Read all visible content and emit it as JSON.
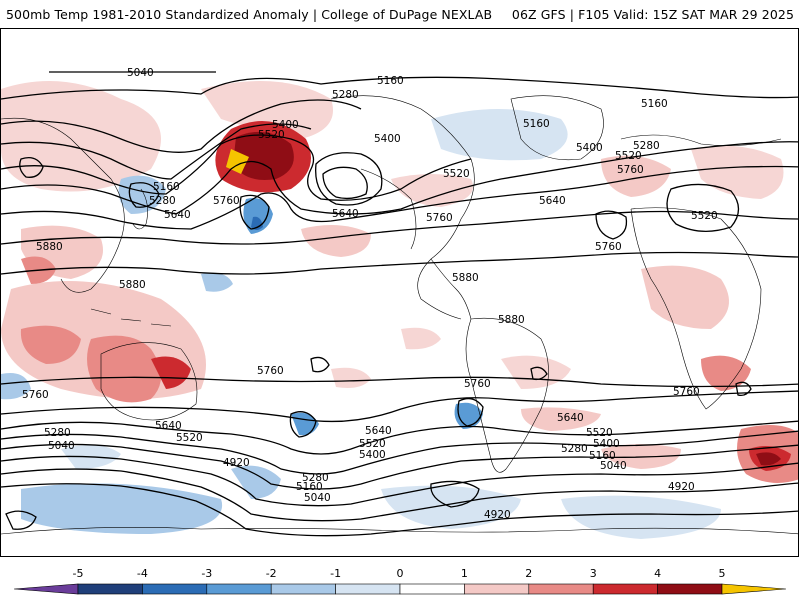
{
  "header": {
    "title_left": "500mb Temp 1981-2010 Standardized Anomaly | College of DuPage NEXLAB",
    "title_right": "06Z GFS | F105 Valid: 15Z SAT MAR 29 2025"
  },
  "colorbar": {
    "ticks": [
      "-5",
      "-4",
      "-3",
      "-2",
      "-1",
      "0",
      "1",
      "2",
      "3",
      "4",
      "5"
    ],
    "colors": [
      "#6a3d9a",
      "#1f3f7a",
      "#2b6cb5",
      "#5a9bd5",
      "#a9c9e8",
      "#d6e4f2",
      "#ffffff",
      "#f4c9c6",
      "#e88a86",
      "#cc2a2f",
      "#8f0d15",
      "#f5c400"
    ]
  },
  "contours": {
    "labels": [
      "5040",
      "5160",
      "5280",
      "5400",
      "5520",
      "5640",
      "5760",
      "5880",
      "4920"
    ]
  },
  "map_labels": {
    "top_left_5040": "5040",
    "top_5160": "5160",
    "np_5280": "5280",
    "np_5400": "5400",
    "np_5520": "5520",
    "np_5760": "5760",
    "np_5640": "5640",
    "ak_5400": "5400",
    "na_5160": "5160",
    "na_5520": "5520",
    "na_5760": "5760",
    "atl_5640": "5640",
    "atl_5760": "5760",
    "eu_5160": "5160",
    "eu_5280": "5280",
    "eu_5400": "5400",
    "eu_5520": "5520",
    "eu_5760": "5760",
    "med_5520": "5520",
    "w_5160": "5160",
    "w_5280": "5280",
    "w_5640": "5640",
    "w_5880a": "5880",
    "w_5880b": "5880",
    "sp_5880": "5880",
    "sp2_5880": "5880",
    "sp_5760": "5760",
    "sa_5760": "5760",
    "io_5760": "5760",
    "sw_5760": "5760",
    "so_5640a": "5640",
    "so_5520a": "5520",
    "so_5280a": "5280",
    "so_5040a": "5040",
    "so_4920a": "4920",
    "so_5160a": "5160",
    "so_5280b": "5280",
    "so_5040b": "5040",
    "so_5640b": "5640",
    "so_5520b": "5520",
    "so_5400b": "5400",
    "so_4920b": "4920",
    "sa_5640": "5640",
    "sa_5520": "5520",
    "sa_5400": "5400",
    "sa_5280": "5280",
    "sa_5160": "5160",
    "sa_5040": "5040",
    "so_4920c": "4920"
  }
}
